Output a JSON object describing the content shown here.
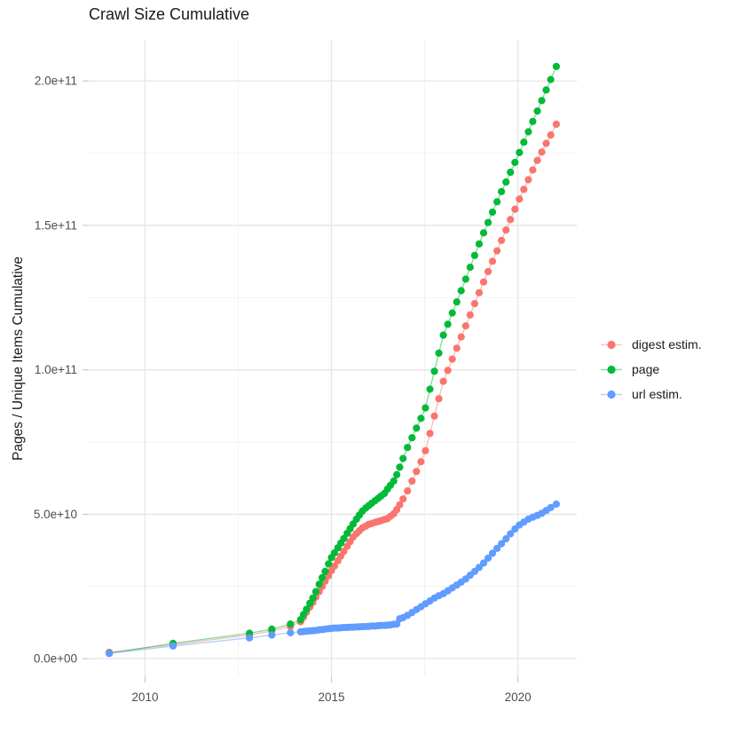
{
  "chart_data": {
    "type": "line",
    "title": "Crawl Size Cumulative",
    "xlabel": "",
    "ylabel": "Pages / Unique Items Cumulative",
    "values_unit": "billions (1e9)",
    "axes": {
      "xlim": [
        2008.49,
        2021.58
      ],
      "ylim_e9": [
        -6.1,
        214.2
      ],
      "grid": true,
      "legend_position": "right"
    },
    "x_ticks": [
      {
        "label": "2010",
        "year": 2010
      },
      {
        "label": "2015",
        "year": 2015
      },
      {
        "label": "2020",
        "year": 2020
      }
    ],
    "x_minor_years": [
      2012.5,
      2017.5
    ],
    "y_ticks": [
      {
        "label": "0.0e+00",
        "value_e9": 0
      },
      {
        "label": "5.0e+10",
        "value_e9": 50
      },
      {
        "label": "1.0e+11",
        "value_e9": 100
      },
      {
        "label": "1.5e+11",
        "value_e9": 150
      },
      {
        "label": "2.0e+11",
        "value_e9": 200
      }
    ],
    "y_minor_e9": [
      25,
      75,
      125,
      175
    ],
    "series": [
      {
        "name": "digest estim.",
        "color": "#F8766D",
        "points": [
          [
            2009.04,
            2.2
          ],
          [
            2010.75,
            4.9
          ],
          [
            2012.8,
            8.2
          ],
          [
            2013.4,
            9.6
          ],
          [
            2013.9,
            11.2
          ],
          [
            2014.17,
            12.8
          ],
          [
            2014.25,
            14.4
          ],
          [
            2014.33,
            16.1
          ],
          [
            2014.42,
            17.9
          ],
          [
            2014.5,
            19.5
          ],
          [
            2014.58,
            21.3
          ],
          [
            2014.67,
            23.2
          ],
          [
            2014.75,
            25.0
          ],
          [
            2014.83,
            26.8
          ],
          [
            2014.92,
            28.7
          ],
          [
            2015.0,
            30.5
          ],
          [
            2015.08,
            32.1
          ],
          [
            2015.17,
            33.9
          ],
          [
            2015.25,
            35.5
          ],
          [
            2015.33,
            37.1
          ],
          [
            2015.42,
            38.9
          ],
          [
            2015.5,
            40.5
          ],
          [
            2015.58,
            42.1
          ],
          [
            2015.67,
            43.3
          ],
          [
            2015.75,
            44.3
          ],
          [
            2015.83,
            45.3
          ],
          [
            2015.92,
            45.9
          ],
          [
            2016.0,
            46.5
          ],
          [
            2016.08,
            46.8
          ],
          [
            2016.17,
            47.2
          ],
          [
            2016.25,
            47.5
          ],
          [
            2016.33,
            47.8
          ],
          [
            2016.42,
            48.2
          ],
          [
            2016.5,
            48.5
          ],
          [
            2016.58,
            49.3
          ],
          [
            2016.67,
            50.2
          ],
          [
            2016.75,
            51.6
          ],
          [
            2016.83,
            53.3
          ],
          [
            2016.92,
            55.3
          ],
          [
            2017.04,
            58.1
          ],
          [
            2017.16,
            61.5
          ],
          [
            2017.28,
            64.8
          ],
          [
            2017.4,
            68.2
          ],
          [
            2017.52,
            72.0
          ],
          [
            2017.64,
            78.0
          ],
          [
            2017.76,
            84.0
          ],
          [
            2017.88,
            90.0
          ],
          [
            2018.0,
            96.0
          ],
          [
            2018.12,
            99.8
          ],
          [
            2018.24,
            103.7
          ],
          [
            2018.36,
            107.5
          ],
          [
            2018.48,
            111.4
          ],
          [
            2018.6,
            115.2
          ],
          [
            2018.72,
            119.0
          ],
          [
            2018.84,
            122.9
          ],
          [
            2018.96,
            126.7
          ],
          [
            2019.08,
            130.4
          ],
          [
            2019.2,
            134.0
          ],
          [
            2019.32,
            137.6
          ],
          [
            2019.44,
            141.2
          ],
          [
            2019.56,
            144.8
          ],
          [
            2019.68,
            148.4
          ],
          [
            2019.8,
            152.0
          ],
          [
            2019.92,
            155.6
          ],
          [
            2020.04,
            159.1
          ],
          [
            2020.16,
            162.5
          ],
          [
            2020.28,
            165.8
          ],
          [
            2020.4,
            169.2
          ],
          [
            2020.52,
            172.5
          ],
          [
            2020.64,
            175.4
          ],
          [
            2020.76,
            178.4
          ],
          [
            2020.88,
            181.3
          ],
          [
            2021.03,
            185.0
          ]
        ]
      },
      {
        "name": "page",
        "color": "#00BA38",
        "points": [
          [
            2009.04,
            1.9
          ],
          [
            2010.75,
            5.3
          ],
          [
            2012.8,
            8.8
          ],
          [
            2013.4,
            10.2
          ],
          [
            2013.9,
            12.0
          ],
          [
            2014.17,
            13.5
          ],
          [
            2014.25,
            15.3
          ],
          [
            2014.33,
            17.1
          ],
          [
            2014.42,
            19.2
          ],
          [
            2014.5,
            21.0
          ],
          [
            2014.58,
            23.2
          ],
          [
            2014.67,
            25.8
          ],
          [
            2014.75,
            28.0
          ],
          [
            2014.83,
            30.2
          ],
          [
            2014.92,
            32.8
          ],
          [
            2015.0,
            35.0
          ],
          [
            2015.08,
            36.6
          ],
          [
            2015.17,
            38.4
          ],
          [
            2015.25,
            40.0
          ],
          [
            2015.33,
            41.6
          ],
          [
            2015.42,
            43.4
          ],
          [
            2015.5,
            45.0
          ],
          [
            2015.58,
            46.6
          ],
          [
            2015.67,
            48.3
          ],
          [
            2015.75,
            49.7
          ],
          [
            2015.83,
            51.1
          ],
          [
            2015.92,
            52.2
          ],
          [
            2016.0,
            53.0
          ],
          [
            2016.08,
            53.8
          ],
          [
            2016.17,
            54.7
          ],
          [
            2016.25,
            55.5
          ],
          [
            2016.33,
            56.3
          ],
          [
            2016.42,
            57.2
          ],
          [
            2016.5,
            58.7
          ],
          [
            2016.58,
            60.0
          ],
          [
            2016.67,
            61.5
          ],
          [
            2016.75,
            63.7
          ],
          [
            2016.83,
            66.3
          ],
          [
            2016.92,
            69.3
          ],
          [
            2017.04,
            73.1
          ],
          [
            2017.16,
            76.5
          ],
          [
            2017.28,
            79.8
          ],
          [
            2017.4,
            83.2
          ],
          [
            2017.52,
            86.8
          ],
          [
            2017.64,
            93.3
          ],
          [
            2017.76,
            99.5
          ],
          [
            2017.88,
            105.8
          ],
          [
            2018.0,
            112.0
          ],
          [
            2018.12,
            115.8
          ],
          [
            2018.24,
            119.7
          ],
          [
            2018.36,
            123.5
          ],
          [
            2018.48,
            127.4
          ],
          [
            2018.6,
            131.4
          ],
          [
            2018.72,
            135.5
          ],
          [
            2018.84,
            139.6
          ],
          [
            2018.96,
            143.6
          ],
          [
            2019.08,
            147.4
          ],
          [
            2019.2,
            151.0
          ],
          [
            2019.32,
            154.6
          ],
          [
            2019.44,
            158.2
          ],
          [
            2019.56,
            161.7
          ],
          [
            2019.68,
            165.0
          ],
          [
            2019.8,
            168.4
          ],
          [
            2019.92,
            171.8
          ],
          [
            2020.04,
            175.2
          ],
          [
            2020.16,
            178.8
          ],
          [
            2020.28,
            182.4
          ],
          [
            2020.4,
            186.0
          ],
          [
            2020.52,
            189.6
          ],
          [
            2020.64,
            193.2
          ],
          [
            2020.76,
            196.9
          ],
          [
            2020.88,
            200.5
          ],
          [
            2021.03,
            205.0
          ]
        ]
      },
      {
        "name": "url estim.",
        "color": "#619CFF",
        "points": [
          [
            2009.04,
            1.8
          ],
          [
            2010.75,
            4.4
          ],
          [
            2012.8,
            7.2
          ],
          [
            2013.4,
            8.2
          ],
          [
            2013.9,
            9.0
          ],
          [
            2014.17,
            9.3
          ],
          [
            2014.25,
            9.4
          ],
          [
            2014.33,
            9.5
          ],
          [
            2014.42,
            9.6
          ],
          [
            2014.5,
            9.7
          ],
          [
            2014.58,
            9.8
          ],
          [
            2014.67,
            10.0
          ],
          [
            2014.75,
            10.1
          ],
          [
            2014.83,
            10.2
          ],
          [
            2014.92,
            10.4
          ],
          [
            2015.0,
            10.5
          ],
          [
            2015.08,
            10.6
          ],
          [
            2015.17,
            10.6
          ],
          [
            2015.25,
            10.7
          ],
          [
            2015.33,
            10.8
          ],
          [
            2015.42,
            10.8
          ],
          [
            2015.5,
            10.9
          ],
          [
            2015.58,
            10.9
          ],
          [
            2015.67,
            11.0
          ],
          [
            2015.75,
            11.0
          ],
          [
            2015.83,
            11.1
          ],
          [
            2015.92,
            11.1
          ],
          [
            2016.0,
            11.2
          ],
          [
            2016.08,
            11.3
          ],
          [
            2016.17,
            11.3
          ],
          [
            2016.25,
            11.4
          ],
          [
            2016.33,
            11.5
          ],
          [
            2016.42,
            11.5
          ],
          [
            2016.5,
            11.6
          ],
          [
            2016.58,
            11.7
          ],
          [
            2016.67,
            11.9
          ],
          [
            2016.75,
            12.0
          ],
          [
            2016.83,
            13.8
          ],
          [
            2016.92,
            14.2
          ],
          [
            2017.04,
            15.0
          ],
          [
            2017.16,
            16.0
          ],
          [
            2017.28,
            17.0
          ],
          [
            2017.4,
            18.0
          ],
          [
            2017.52,
            19.0
          ],
          [
            2017.64,
            20.0
          ],
          [
            2017.76,
            21.0
          ],
          [
            2017.88,
            21.8
          ],
          [
            2018.0,
            22.5
          ],
          [
            2018.12,
            23.5
          ],
          [
            2018.24,
            24.5
          ],
          [
            2018.36,
            25.5
          ],
          [
            2018.48,
            26.5
          ],
          [
            2018.6,
            27.6
          ],
          [
            2018.72,
            28.9
          ],
          [
            2018.84,
            30.2
          ],
          [
            2018.96,
            31.6
          ],
          [
            2019.08,
            33.1
          ],
          [
            2019.2,
            34.8
          ],
          [
            2019.32,
            36.5
          ],
          [
            2019.44,
            38.2
          ],
          [
            2019.56,
            39.8
          ],
          [
            2019.68,
            41.5
          ],
          [
            2019.8,
            43.2
          ],
          [
            2019.92,
            44.9
          ],
          [
            2020.04,
            46.3
          ],
          [
            2020.16,
            47.3
          ],
          [
            2020.28,
            48.3
          ],
          [
            2020.4,
            49.0
          ],
          [
            2020.52,
            49.6
          ],
          [
            2020.64,
            50.3
          ],
          [
            2020.76,
            51.3
          ],
          [
            2020.88,
            52.3
          ],
          [
            2021.03,
            53.5
          ]
        ]
      }
    ],
    "style": {
      "major_grid_color": "#E5E5E5",
      "minor_grid_color": "#F2F2F2",
      "tick_color": "#C9C9C9",
      "tick_label_color": "#4D4D4D",
      "point_radius": 4.1
    }
  }
}
